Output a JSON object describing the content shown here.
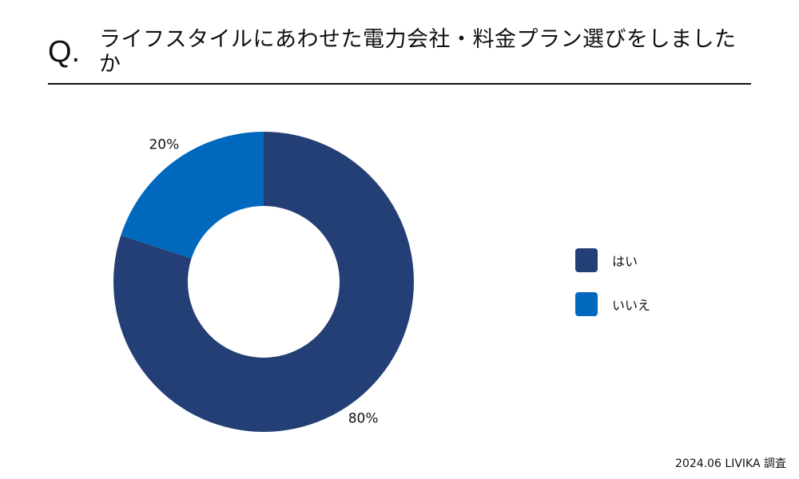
{
  "header": {
    "q_mark": "Q.",
    "title": "ライフスタイルにあわせた電力会社・料金プラン選びをしましたか"
  },
  "chart_data": {
    "type": "pie",
    "donut": true,
    "categories": [
      "はい",
      "いいえ"
    ],
    "values": [
      80,
      20
    ],
    "labels": [
      "80%",
      "20%"
    ],
    "colors": [
      "#243F75",
      "#0069BE"
    ],
    "legend_position": "right"
  },
  "footer": {
    "source": "2024.06 LIVIKA 調査"
  }
}
